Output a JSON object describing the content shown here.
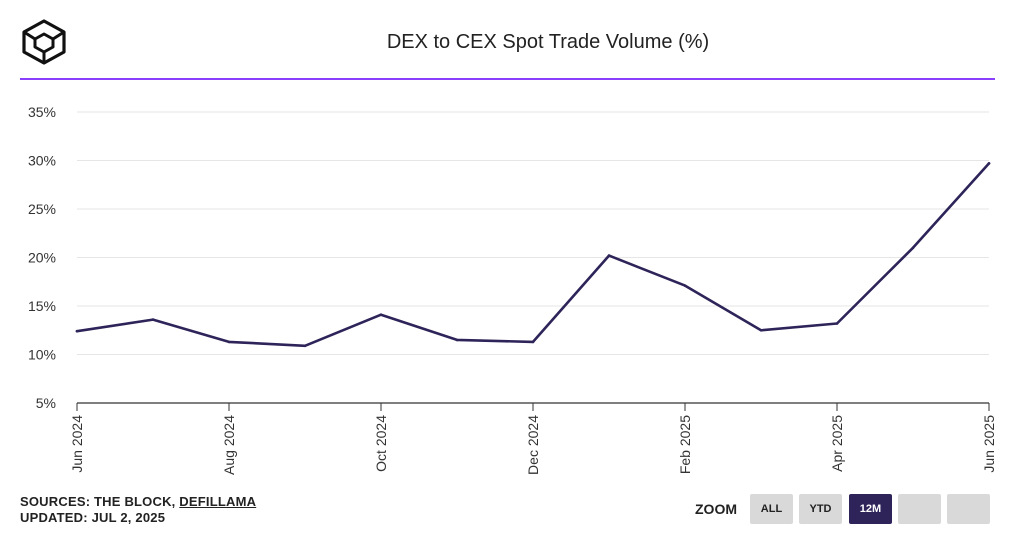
{
  "header": {
    "title": "DEX to CEX Spot Trade Volume (%)"
  },
  "footer": {
    "sources_prefix": "SOURCES: THE BLOCK, ",
    "sources_link": "DEFILLAMA",
    "updated": "UPDATED: JUL 2, 2025"
  },
  "zoom": {
    "label": "ZOOM",
    "buttons": [
      "ALL",
      "YTD",
      "12M",
      "",
      ""
    ],
    "active": "12M"
  },
  "colors": {
    "line": "#2e2459",
    "accent": "#8a3ffc"
  },
  "chart_data": {
    "type": "line",
    "title": "DEX to CEX Spot Trade Volume (%)",
    "x": [
      "2024-06",
      "2024-07",
      "2024-08",
      "2024-09",
      "2024-10",
      "2024-11",
      "2024-12",
      "2025-01",
      "2025-02",
      "2025-03",
      "2025-04",
      "2025-05",
      "2025-06"
    ],
    "x_tick_labels": [
      "Jun 2024",
      "Aug 2024",
      "Oct 2024",
      "Dec 2024",
      "Feb 2025",
      "Apr 2025",
      "Jun 2025"
    ],
    "x_tick_positions": [
      "2024-06",
      "2024-08",
      "2024-10",
      "2024-12",
      "2025-02",
      "2025-04",
      "2025-06"
    ],
    "series": [
      {
        "values": [
          12.4,
          13.6,
          11.3,
          10.9,
          14.1,
          11.5,
          11.3,
          20.2,
          17.1,
          12.5,
          13.2,
          21.0,
          29.7
        ]
      }
    ],
    "ylim": [
      5,
      35
    ],
    "y_ticks": [
      5,
      10,
      15,
      20,
      25,
      30,
      35
    ],
    "y_tick_format": "{v}%",
    "grid": true,
    "legend": "none"
  }
}
